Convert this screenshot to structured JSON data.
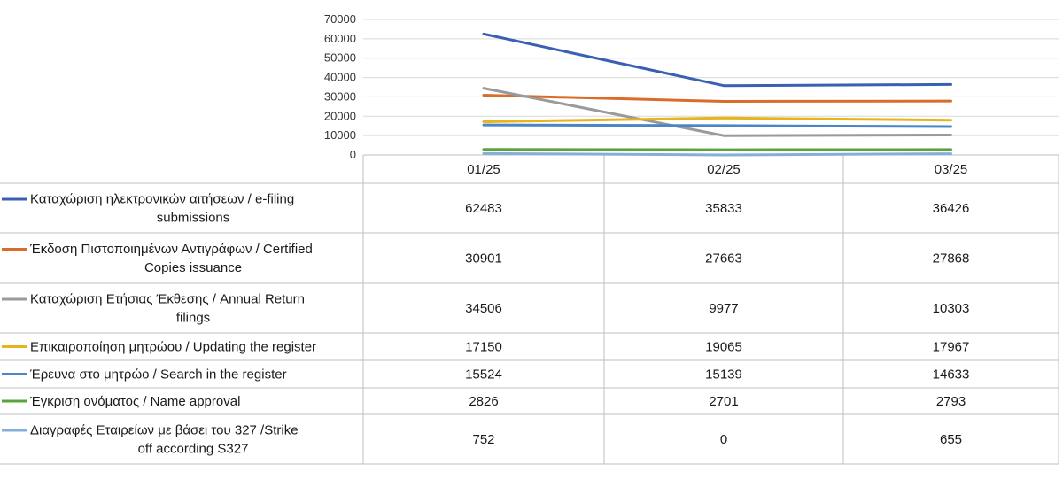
{
  "chart_data": {
    "type": "line",
    "categories": [
      "01/25",
      "02/25",
      "03/25"
    ],
    "ylim": [
      0,
      70000
    ],
    "yticks": [
      "70000",
      "60000",
      "50000",
      "40000",
      "30000",
      "20000",
      "10000",
      "0"
    ],
    "grid": true,
    "legend_placement": "left (data table)",
    "series": [
      {
        "name_lines": [
          "Καταχώριση ηλεκτρονικών αιτήσεων / e-filing",
          "submissions"
        ],
        "color": "#3a60b4",
        "values": [
          62483,
          35833,
          36426
        ]
      },
      {
        "name_lines": [
          "Έκδοση Πιστοποιημένων Αντιγράφων / Certified",
          "Copies issuance"
        ],
        "color": "#d96c2a",
        "values": [
          30901,
          27663,
          27868
        ]
      },
      {
        "name_lines": [
          "Καταχώριση Ετήσιας Έκθεσης / Annual Return",
          "filings"
        ],
        "color": "#9a9a9a",
        "values": [
          34506,
          9977,
          10303
        ]
      },
      {
        "name_lines": [
          "Επικαιροποίηση μητρώου / Updating the register"
        ],
        "color": "#e8b41c",
        "values": [
          17150,
          19065,
          17967
        ]
      },
      {
        "name_lines": [
          "Έρευνα στο μητρώο / Search in the register"
        ],
        "color": "#4a86c6",
        "values": [
          15524,
          15139,
          14633
        ]
      },
      {
        "name_lines": [
          "Έγκριση ονόματος / Name approval"
        ],
        "color": "#5aa43c",
        "values": [
          2826,
          2701,
          2793
        ]
      },
      {
        "name_lines": [
          "Διαγραφές Εταιρείων με βάσει του 327 /Strike",
          "off according S327"
        ],
        "color": "#86aedb",
        "values": [
          752,
          0,
          655
        ]
      }
    ]
  }
}
